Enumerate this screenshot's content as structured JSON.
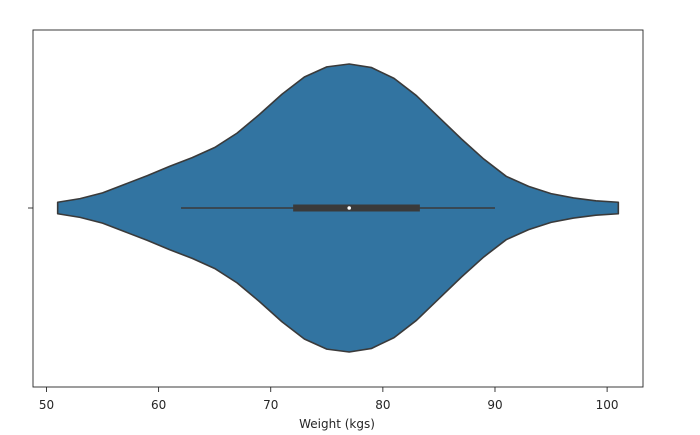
{
  "chart_data": {
    "type": "violin",
    "orient": "horizontal",
    "xlabel": "Weight (kgs)",
    "ylabel": "",
    "xlim": [
      48.8,
      103.2
    ],
    "xticks": [
      50,
      60,
      70,
      80,
      90,
      100
    ],
    "tick_labels": [
      "50",
      "60",
      "70",
      "80",
      "90",
      "100"
    ],
    "grid": false,
    "color": "#3274a1",
    "edge_color": "#3a3a3a",
    "range": [
      51,
      101
    ],
    "density": [
      [
        51.0,
        0.04
      ],
      [
        53.0,
        0.065
      ],
      [
        55.0,
        0.105
      ],
      [
        57.0,
        0.165
      ],
      [
        59.0,
        0.225
      ],
      [
        61.0,
        0.29
      ],
      [
        63.0,
        0.35
      ],
      [
        65.0,
        0.42
      ],
      [
        67.0,
        0.52
      ],
      [
        69.0,
        0.65
      ],
      [
        71.0,
        0.79
      ],
      [
        73.0,
        0.91
      ],
      [
        75.0,
        0.98
      ],
      [
        77.0,
        1.0
      ],
      [
        79.0,
        0.975
      ],
      [
        81.0,
        0.9
      ],
      [
        83.0,
        0.78
      ],
      [
        85.0,
        0.63
      ],
      [
        87.0,
        0.48
      ],
      [
        89.0,
        0.34
      ],
      [
        91.0,
        0.22
      ],
      [
        93.0,
        0.15
      ],
      [
        95.0,
        0.1
      ],
      [
        97.0,
        0.07
      ],
      [
        99.0,
        0.05
      ],
      [
        101.0,
        0.04
      ]
    ],
    "whisker_low": 62,
    "q1": 72,
    "median": 77,
    "q3": 83.3,
    "whisker_high": 90
  }
}
